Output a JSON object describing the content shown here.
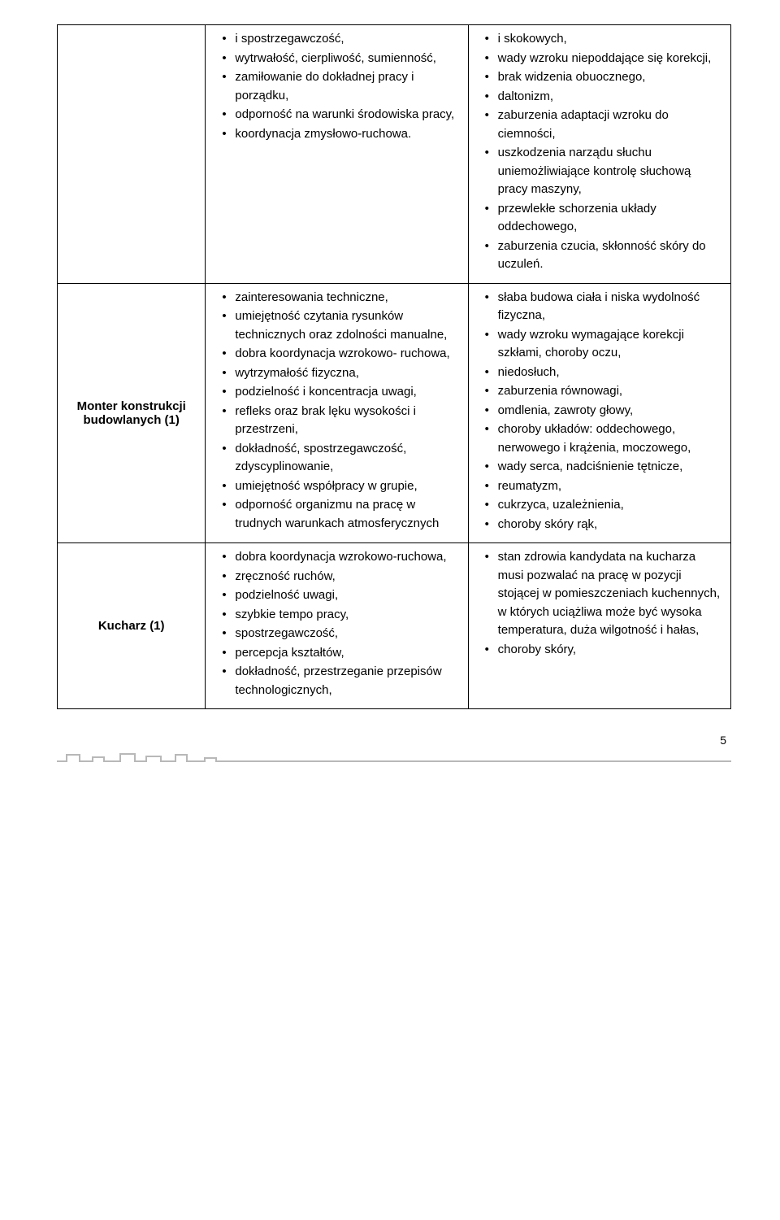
{
  "rows": [
    {
      "label": "",
      "col2": [
        "i spostrzegawczość,",
        "wytrwałość, cierpliwość, sumienność,",
        "zamiłowanie do dokładnej pracy i porządku,",
        "odporność na warunki środowiska pracy,",
        "koordynacja zmysłowo-ruchowa."
      ],
      "col3": [
        "i skokowych,",
        "wady wzroku niepoddające się korekcji,",
        "brak widzenia obuocznego,",
        "daltonizm,",
        "zaburzenia adaptacji wzroku do ciemności,",
        "uszkodzenia narządu słuchu uniemożliwiające kontrolę słuchową pracy maszyny,",
        "przewlekłe schorzenia układy oddechowego,",
        "zaburzenia czucia, skłonność skóry do uczuleń."
      ]
    },
    {
      "label": "Monter konstrukcji budowlanych (1)",
      "col2": [
        "zainteresowania techniczne,",
        "umiejętność czytania rysunków technicznych oraz zdolności manualne,",
        "dobra koordynacja wzrokowo- ruchowa,",
        "wytrzymałość fizyczna,",
        "podzielność i koncentracja uwagi,",
        "refleks oraz brak lęku wysokości i przestrzeni,",
        "dokładność, spostrzegawczość, zdyscyplinowanie,",
        "umiejętność współpracy w grupie,",
        "odporność organizmu na pracę w trudnych warunkach atmosferycznych"
      ],
      "col3": [
        "słaba budowa ciała i niska wydolność fizyczna,",
        "wady wzroku wymagające korekcji szkłami, choroby oczu,",
        "niedosłuch,",
        "zaburzenia równowagi,",
        "omdlenia, zawroty głowy,",
        "choroby układów: oddechowego, nerwowego i krążenia, moczowego,",
        "wady serca, nadciśnienie tętnicze,",
        "reumatyzm,",
        "cukrzyca, uzależnienia,",
        "choroby skóry rąk,"
      ]
    },
    {
      "label": "Kucharz (1)",
      "col2": [
        "dobra koordynacja wzrokowo-ruchowa,",
        "zręczność ruchów,",
        "podzielność uwagi,",
        "szybkie tempo pracy,",
        "spostrzegawczość,",
        "percepcja kształtów,",
        "dokładność, przestrzeganie przepisów technologicznych,"
      ],
      "col3": [
        "stan zdrowia kandydata na kucharza musi pozwalać na pracę w pozycji stojącej w pomieszczeniach kuchennych, w których uciążliwa może być wysoka temperatura, duża wilgotność i hałas,",
        "choroby skóry,"
      ]
    }
  ],
  "pageNumber": "5",
  "colors": {
    "text": "#000000",
    "border": "#000000",
    "bg": "#ffffff",
    "deco": "#b8b8b8"
  }
}
